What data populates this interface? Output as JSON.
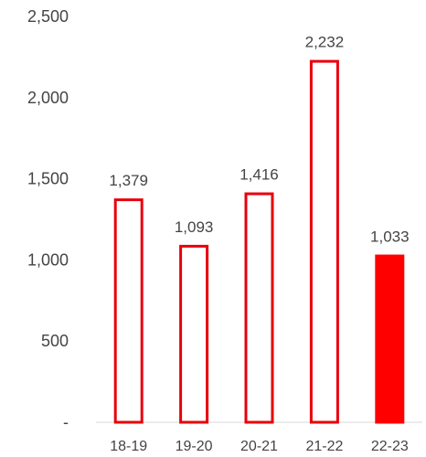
{
  "chart_data": {
    "type": "bar",
    "categories": [
      "18-19",
      "19-20",
      "20-21",
      "21-22",
      "22-23"
    ],
    "values": [
      1379,
      1093,
      1416,
      2232,
      1033
    ],
    "value_labels": [
      "1,379",
      "1,093",
      "1,416",
      "2,232",
      "1,033"
    ],
    "ylim": [
      0,
      2500
    ],
    "yticks": [
      0,
      500,
      1000,
      1500,
      2000,
      2500
    ],
    "ytick_labels": [
      "-",
      "500",
      "1,000",
      "1,500",
      "2,000",
      "2,500"
    ],
    "title": "",
    "xlabel": "",
    "ylabel": "",
    "grid": false,
    "legend": "none",
    "colors": {
      "bar_outline": "#e8000b",
      "highlight_fill": "#ff0000",
      "axis_line": "#d9d9d9",
      "text": "#444444"
    },
    "highlight_index": 4
  }
}
